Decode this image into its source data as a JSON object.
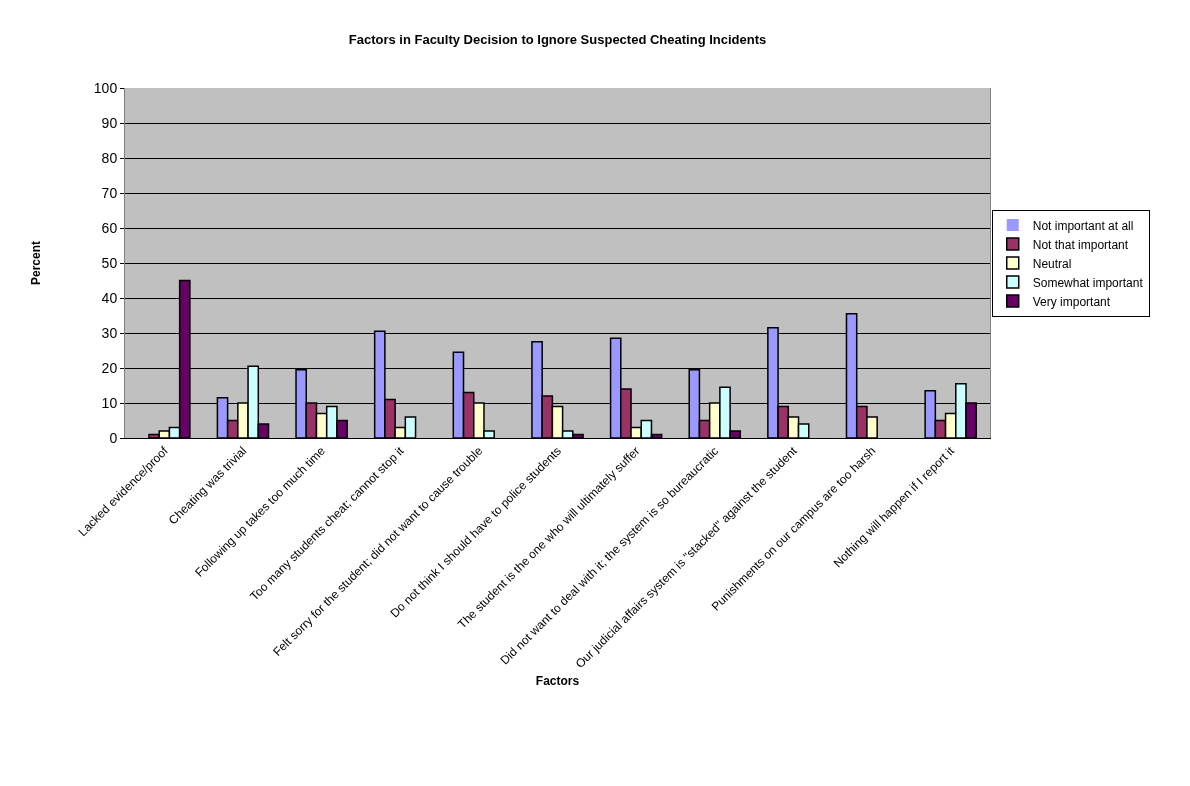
{
  "chart_data": {
    "type": "bar",
    "title": "Factors in Faculty Decision to Ignore Suspected Cheating Incidents",
    "xlabel": "Factors",
    "ylabel": "Percent",
    "categories": [
      "Lacked evidence/proof",
      "Cheating was trivial",
      "Following up takes too much time",
      "Too many students cheat; cannot stop it",
      "Felt sorry for the student; did not want to cause trouble",
      "Do not think I should have to police students",
      "The student is the one who will ultimately suffer",
      "Did not want to deal with it; the system is so bureaucratic",
      "Our judicial affairs system is \"stacked\" against the student",
      "Punishments on our campus are too harsh",
      "Nothing will happen if I report it"
    ],
    "series": [
      {
        "name": "Not important at all",
        "color": "#9999ff",
        "values": [
          0,
          11.5,
          19.5,
          30.5,
          24.5,
          27.5,
          28.5,
          19.5,
          31.5,
          35.5,
          13.5
        ]
      },
      {
        "name": "Not that important",
        "color": "#993366",
        "values": [
          1,
          5,
          10,
          11,
          13,
          12,
          14,
          5,
          9,
          9,
          5
        ]
      },
      {
        "name": "Neutral",
        "color": "#ffffcc",
        "values": [
          2,
          10,
          7,
          3,
          10,
          9,
          3,
          10,
          6,
          6,
          7
        ]
      },
      {
        "name": "Somewhat important",
        "color": "#ccffff",
        "values": [
          3,
          20.5,
          9,
          6,
          2,
          2,
          5,
          14.5,
          4,
          0,
          15.5
        ]
      },
      {
        "name": "Very important",
        "color": "#660066",
        "values": [
          45,
          4,
          5,
          0,
          0,
          1,
          1,
          2,
          0,
          0,
          10
        ]
      }
    ],
    "ylim": [
      0,
      100
    ],
    "yticks": [
      0,
      10,
      20,
      30,
      40,
      50,
      60,
      70,
      80,
      90,
      100
    ],
    "grid": "y",
    "legend": "right"
  }
}
